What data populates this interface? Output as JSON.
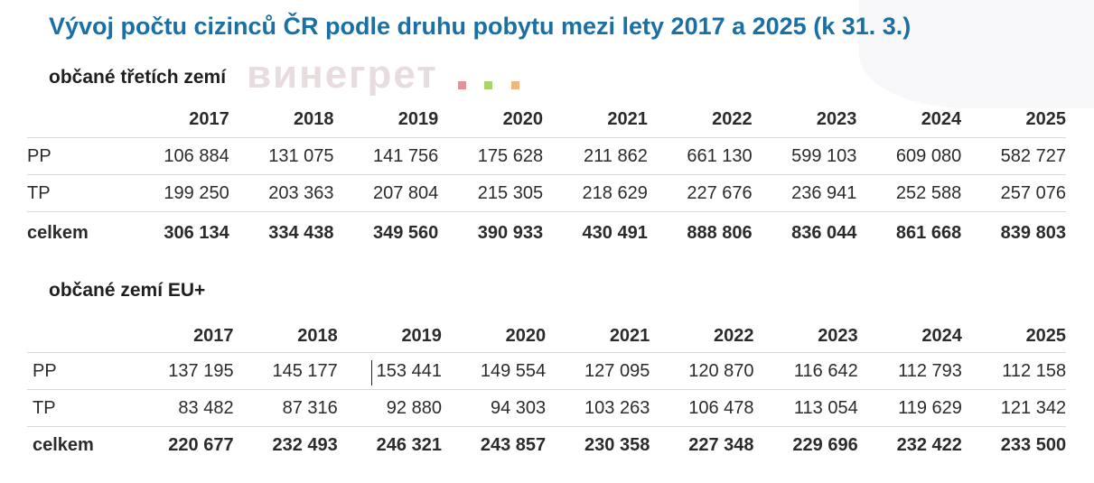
{
  "title": "Vývoj počtu cizinců ČR podle druhu pobytu mezi lety 2017 a 2025 (k 31. 3.)",
  "watermark": "винегрет",
  "colors": {
    "title": "#1a6fa5",
    "watermark_dots": [
      "#e88f9c",
      "#a9d36b",
      "#f1b77a"
    ]
  },
  "sections": [
    {
      "title": "občané třetích zemí",
      "years": [
        "2017",
        "2018",
        "2019",
        "2020",
        "2021",
        "2022",
        "2023",
        "2024",
        "2025"
      ],
      "rows": [
        {
          "label": "PP",
          "values": [
            "106 884",
            "131 075",
            "141 756",
            "175 628",
            "211 862",
            "661 130",
            "599 103",
            "609 080",
            "582 727"
          ]
        },
        {
          "label": "TP",
          "values": [
            "199 250",
            "203 363",
            "207 804",
            "215 305",
            "218 629",
            "227 676",
            "236 941",
            "252 588",
            "257 076"
          ]
        },
        {
          "label": "celkem",
          "values": [
            "306 134",
            "334 438",
            "349 560",
            "390 933",
            "430 491",
            "888 806",
            "836 044",
            "861 668",
            "839 803"
          ]
        }
      ]
    },
    {
      "title": "občané zemí EU+",
      "years": [
        "2017",
        "2018",
        "2019",
        "2020",
        "2021",
        "2022",
        "2023",
        "2024",
        "2025"
      ],
      "rows": [
        {
          "label": "PP",
          "values": [
            "137 195",
            "145 177",
            "153 441",
            "149 554",
            "127 095",
            "120 870",
            "116 642",
            "112 793",
            "112 158"
          ]
        },
        {
          "label": "TP",
          "values": [
            "83 482",
            "87 316",
            "92 880",
            "94 303",
            "103 263",
            "106 478",
            "113 054",
            "119 629",
            "121 342"
          ]
        },
        {
          "label": "celkem",
          "values": [
            "220 677",
            "232 493",
            "246 321",
            "243 857",
            "230 358",
            "227 348",
            "229 696",
            "232 422",
            "233 500"
          ]
        }
      ]
    }
  ]
}
